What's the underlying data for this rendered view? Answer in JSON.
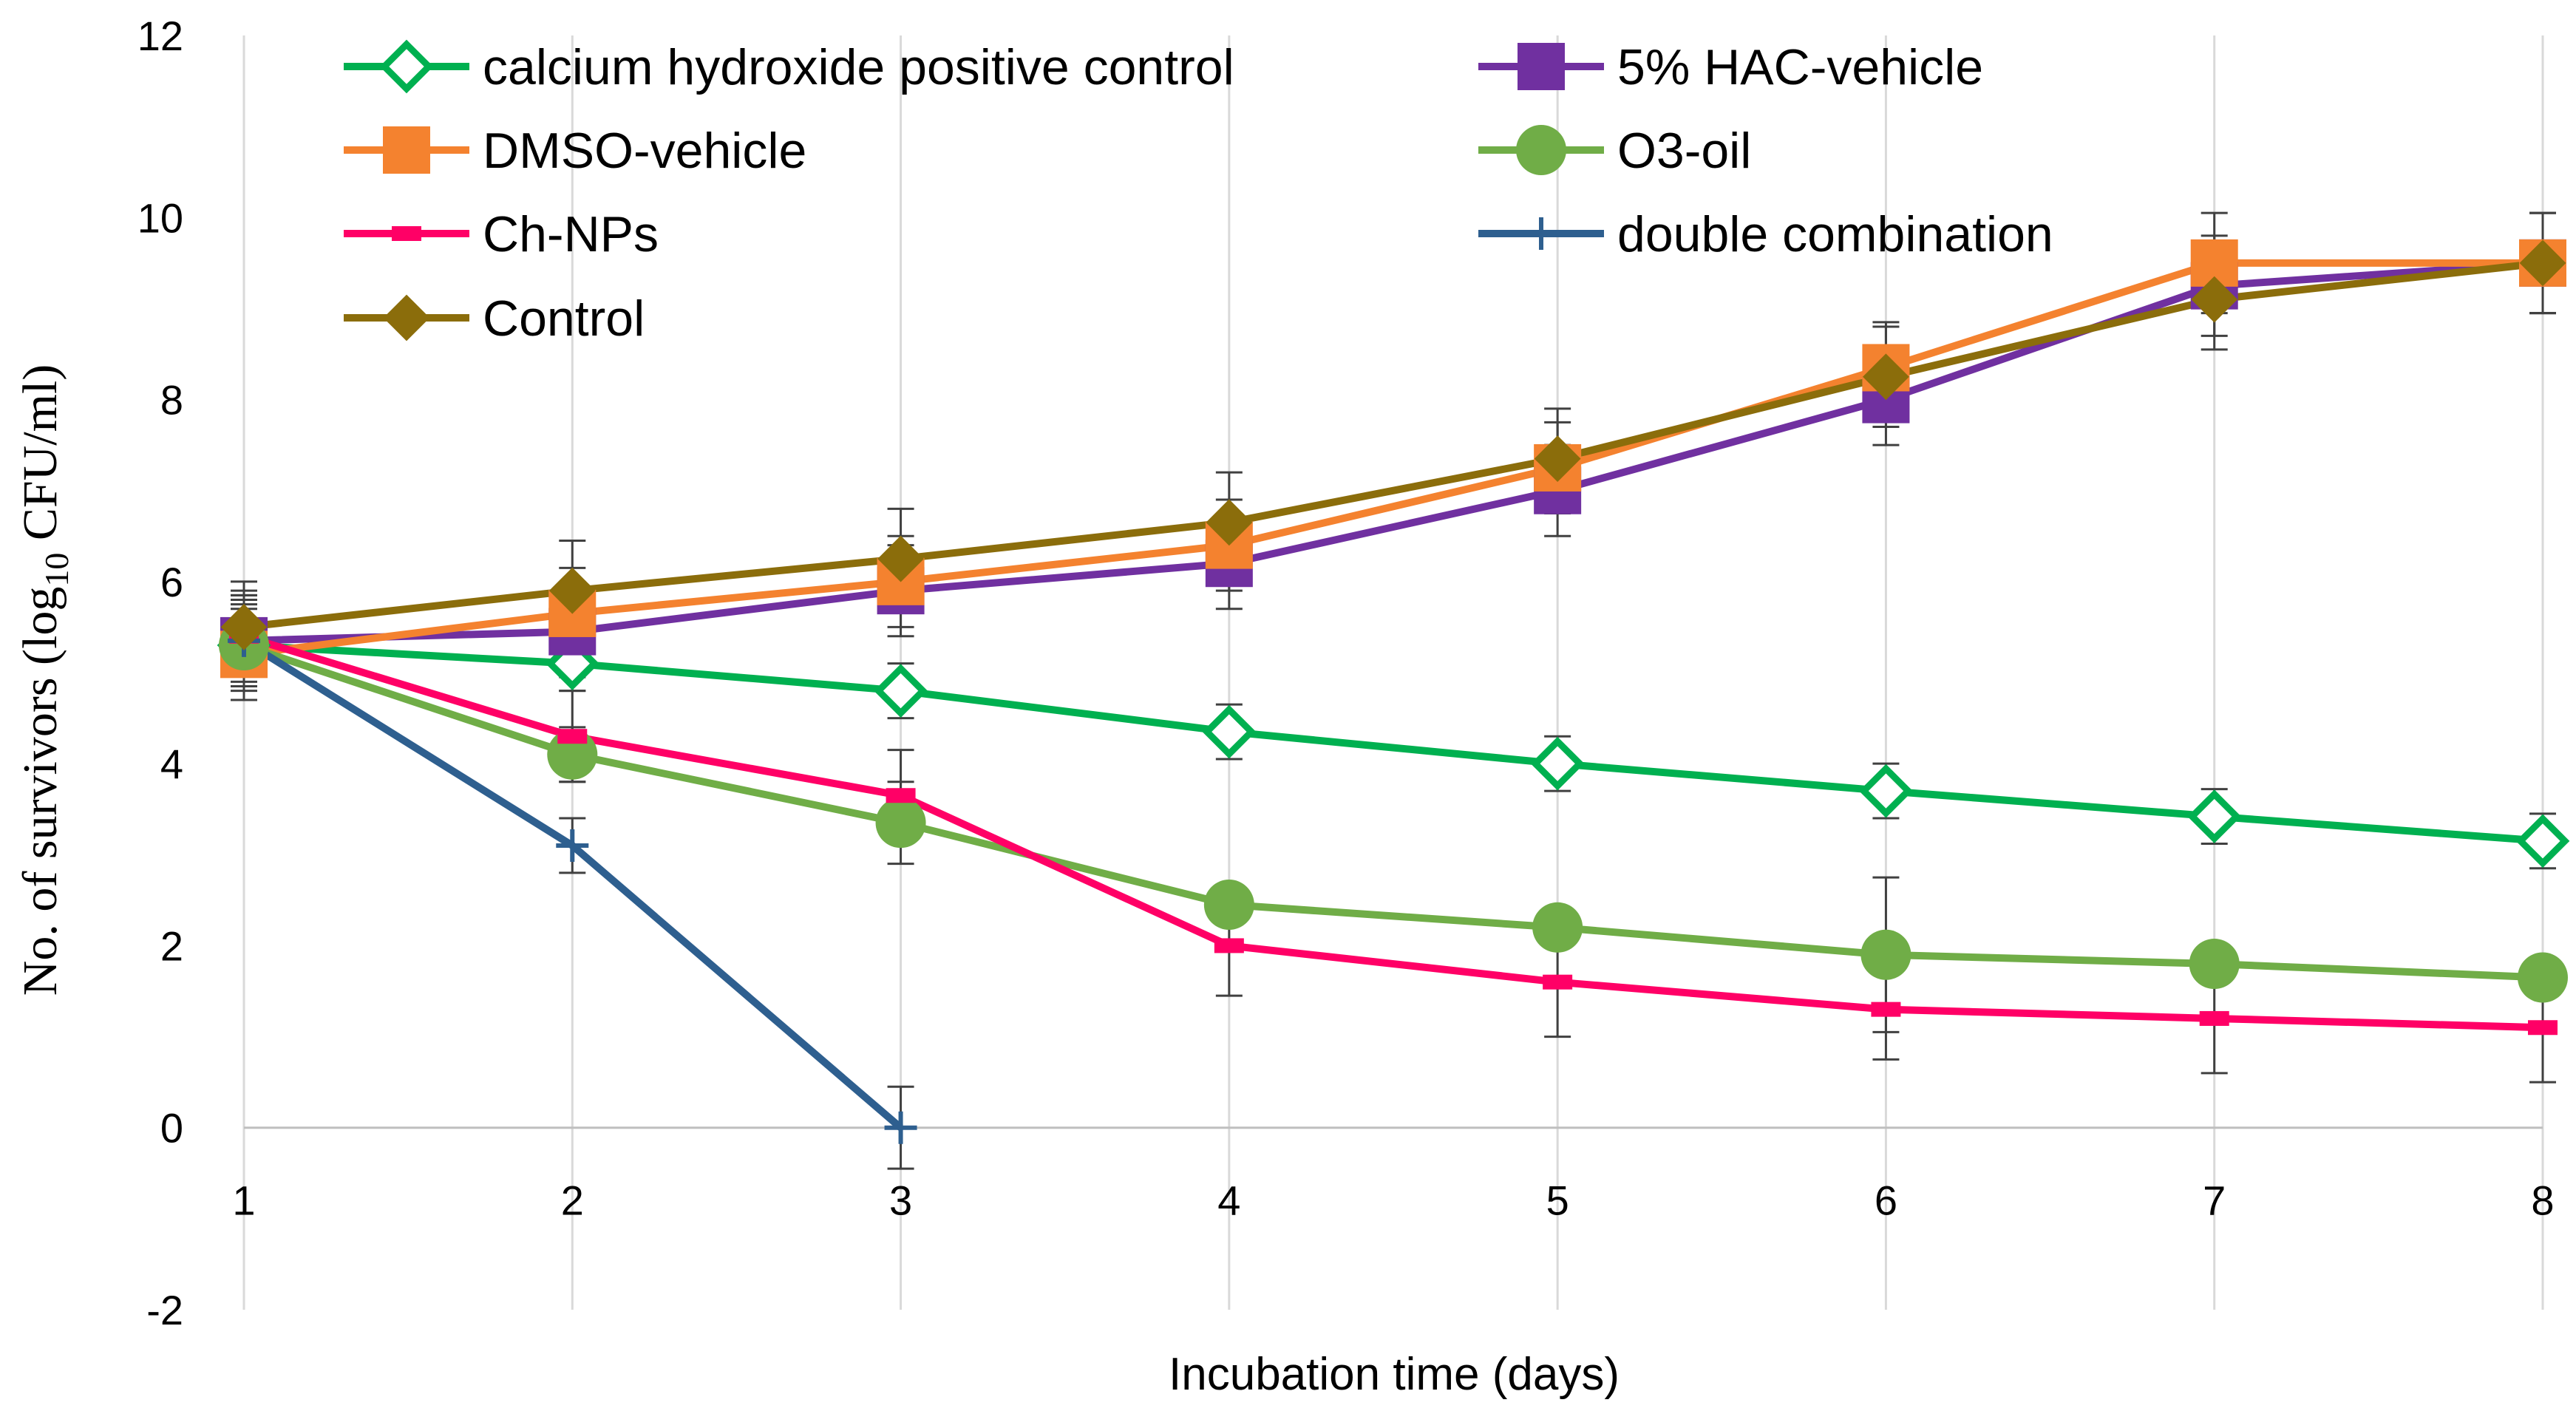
{
  "chart_data": {
    "type": "line",
    "title": "",
    "xlabel": "Incubation time (days)",
    "ylabel_prefix": "No. of survivors (log",
    "ylabel_sub": "10",
    "ylabel_suffix": " CFU/ml)",
    "x": [
      1,
      2,
      3,
      4,
      5,
      6,
      7,
      8
    ],
    "xlim": [
      1,
      8
    ],
    "ylim": [
      -2,
      12
    ],
    "yticks": [
      -2,
      0,
      2,
      4,
      6,
      8,
      10,
      12
    ],
    "grid": "vertical",
    "legend_position": "top",
    "series": [
      {
        "name": "calcium hydroxide positive control",
        "color": "#00B050",
        "marker": "diamond-hollow",
        "x": [
          1,
          2,
          3,
          4,
          5,
          6,
          7,
          8
        ],
        "values": [
          5.3,
          5.1,
          4.8,
          4.35,
          4.0,
          3.7,
          3.42,
          3.15
        ],
        "errors": [
          0.45,
          0.3,
          0.3,
          0.3,
          0.3,
          0.3,
          0.3,
          0.3
        ]
      },
      {
        "name": "5% HAC-vehicle",
        "color": "#7030A0",
        "marker": "square",
        "x": [
          1,
          2,
          3,
          4,
          5,
          6,
          7,
          8
        ],
        "values": [
          5.35,
          5.45,
          5.9,
          6.2,
          7.0,
          8.0,
          9.25,
          9.5
        ],
        "errors": [
          0.5,
          0.5,
          0.5,
          0.5,
          0.5,
          0.5,
          0.55,
          0.55
        ]
      },
      {
        "name": "DMSO-vehicle",
        "color": "#F4822F",
        "marker": "square",
        "x": [
          1,
          2,
          3,
          4,
          5,
          6,
          7,
          8
        ],
        "values": [
          5.2,
          5.65,
          6.0,
          6.4,
          7.25,
          8.35,
          9.5,
          9.5
        ],
        "errors": [
          0.5,
          0.5,
          0.5,
          0.5,
          0.5,
          0.5,
          0.55,
          0.55
        ]
      },
      {
        "name": "O3-oil",
        "color": "#70AD47",
        "marker": "circle",
        "x": [
          1,
          2,
          3,
          4,
          5,
          6,
          7,
          8
        ],
        "values": [
          5.3,
          4.1,
          3.35,
          2.45,
          2.2,
          1.9,
          1.8,
          1.65
        ],
        "errors": [
          0.5,
          0.3,
          0.45,
          0.2,
          0.2,
          0.85,
          0.2,
          0.15
        ]
      },
      {
        "name": "Ch-NPs",
        "color": "#FF0066",
        "marker": "dash",
        "x": [
          1,
          2,
          3,
          4,
          5,
          6,
          7,
          8
        ],
        "values": [
          5.4,
          4.3,
          3.65,
          2.0,
          1.6,
          1.3,
          1.2,
          1.1
        ],
        "errors": [
          0.5,
          0.5,
          0.5,
          0.55,
          0.6,
          0.55,
          0.6,
          0.6
        ]
      },
      {
        "name": "double combination",
        "color": "#2E5F8F",
        "marker": "plus",
        "x": [
          1,
          2,
          3
        ],
        "values": [
          5.35,
          3.1,
          0.0
        ],
        "errors": [
          0.5,
          0.3,
          0.45
        ]
      },
      {
        "name": "Control",
        "color": "#8B6D0B",
        "marker": "diamond",
        "x": [
          1,
          2,
          3,
          4,
          5,
          6,
          7,
          8
        ],
        "values": [
          5.5,
          5.9,
          6.25,
          6.65,
          7.35,
          8.25,
          9.1,
          9.5
        ],
        "errors": [
          0.5,
          0.55,
          0.55,
          0.55,
          0.55,
          0.55,
          0.55,
          0.55
        ]
      }
    ]
  }
}
